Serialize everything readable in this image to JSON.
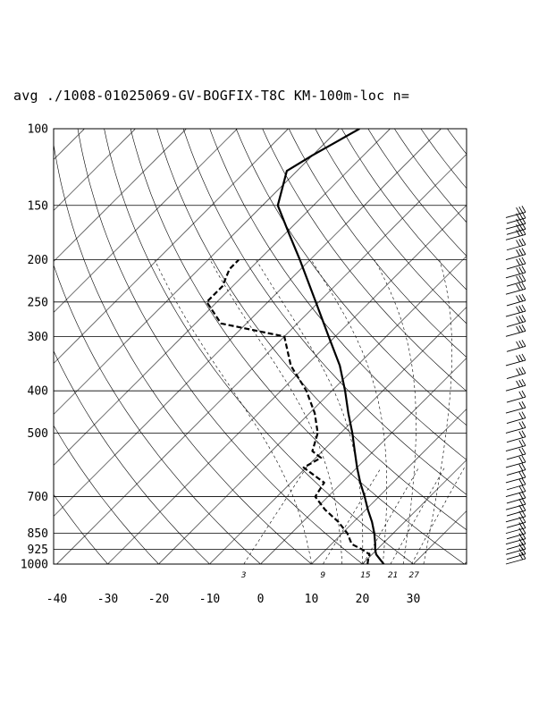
{
  "chart_data": {
    "type": "skew-t log-p sounding",
    "title": "avg ./1008-01025069-GV-BOGFIX-T8C KM-100m-loc n=",
    "x_ticks": [
      "-40",
      "-30",
      "-20",
      "-10",
      "0",
      "10",
      "20",
      "30"
    ],
    "x_range_degC": [
      -40,
      40
    ],
    "p_range_hPa": [
      1000,
      100
    ],
    "pressure_levels": [
      "100",
      "150",
      "200",
      "250",
      "300",
      "400",
      "500",
      "700",
      "850",
      "925",
      "1000"
    ],
    "mixing_ratio_labels": [
      "3",
      "9",
      "15",
      "21",
      "27"
    ],
    "temperature_profile": [
      {
        "p": 1000,
        "t": 24.2
      },
      {
        "p": 975,
        "t": 22.5
      },
      {
        "p": 950,
        "t": 20.8
      },
      {
        "p": 925,
        "t": 19.6
      },
      {
        "p": 900,
        "t": 18.6
      },
      {
        "p": 850,
        "t": 16.3
      },
      {
        "p": 800,
        "t": 13.6
      },
      {
        "p": 750,
        "t": 10.4
      },
      {
        "p": 700,
        "t": 7.2
      },
      {
        "p": 650,
        "t": 3.6
      },
      {
        "p": 600,
        "t": 0.0
      },
      {
        "p": 550,
        "t": -3.7
      },
      {
        "p": 500,
        "t": -7.7
      },
      {
        "p": 450,
        "t": -12.4
      },
      {
        "p": 400,
        "t": -17.4
      },
      {
        "p": 350,
        "t": -23.4
      },
      {
        "p": 300,
        "t": -31.3
      },
      {
        "p": 250,
        "t": -40.6
      },
      {
        "p": 200,
        "t": -52.0
      },
      {
        "p": 175,
        "t": -59.0
      },
      {
        "p": 150,
        "t": -67.0
      },
      {
        "p": 125,
        "t": -72.0
      },
      {
        "p": 115,
        "t": -70.0
      },
      {
        "p": 100,
        "t": -66.0
      }
    ],
    "dewpoint_profile": [
      {
        "p": 1000,
        "td": 21.0
      },
      {
        "p": 975,
        "td": 20.2
      },
      {
        "p": 950,
        "td": 19.5
      },
      {
        "p": 925,
        "td": 17.0
      },
      {
        "p": 900,
        "td": 14.0
      },
      {
        "p": 850,
        "td": 11.0
      },
      {
        "p": 800,
        "td": 7.0
      },
      {
        "p": 750,
        "td": 2.0
      },
      {
        "p": 700,
        "td": -2.5
      },
      {
        "p": 650,
        "td": -3.5
      },
      {
        "p": 600,
        "td": -10.5
      },
      {
        "p": 570,
        "td": -9.0
      },
      {
        "p": 550,
        "td": -12.0
      },
      {
        "p": 500,
        "td": -14.5
      },
      {
        "p": 450,
        "td": -19.0
      },
      {
        "p": 400,
        "td": -25.0
      },
      {
        "p": 350,
        "td": -33.0
      },
      {
        "p": 300,
        "td": -40.0
      },
      {
        "p": 280,
        "td": -55.0
      },
      {
        "p": 250,
        "td": -62.0
      },
      {
        "p": 230,
        "td": -62.0
      },
      {
        "p": 210,
        "td": -64.0
      },
      {
        "p": 200,
        "td": -64.0
      }
    ],
    "wind_barb_pressures": [
      1000,
      975,
      950,
      925,
      900,
      875,
      850,
      825,
      800,
      775,
      750,
      725,
      700,
      675,
      650,
      625,
      600,
      575,
      550,
      525,
      500,
      475,
      450,
      425,
      400,
      375,
      350,
      325,
      300,
      285,
      270,
      255,
      240,
      230,
      220,
      210,
      200,
      190,
      180,
      175,
      170,
      165,
      160
    ],
    "grid": true
  }
}
